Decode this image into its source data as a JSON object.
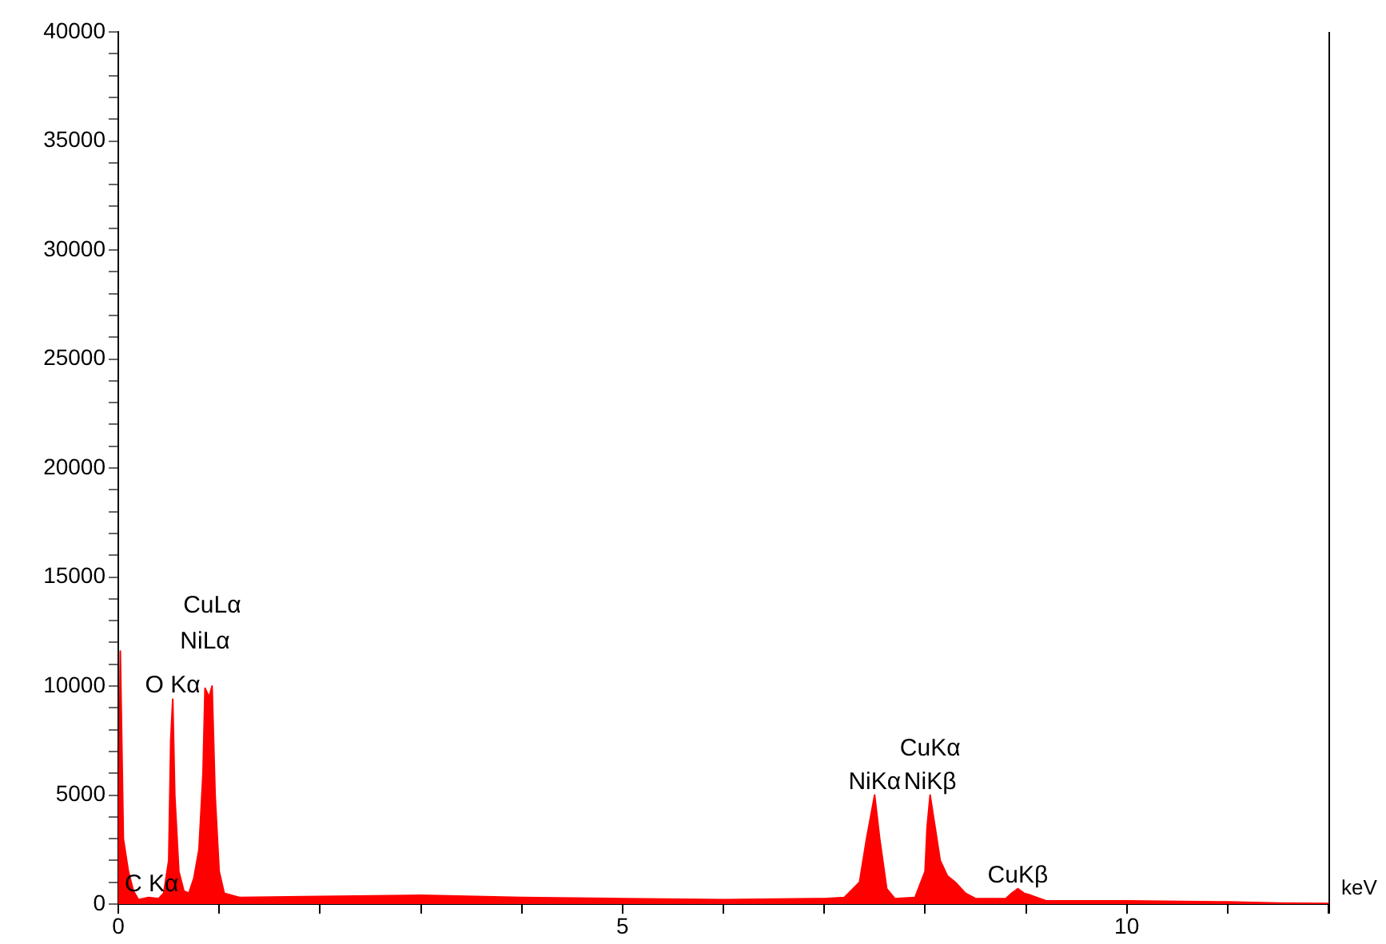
{
  "chart_data": {
    "type": "area",
    "xlabel": "keV",
    "x": [
      0,
      0.02,
      0.05,
      0.1,
      0.15,
      0.2,
      0.3,
      0.4,
      0.45,
      0.5,
      0.52,
      0.54,
      0.56,
      0.6,
      0.65,
      0.7,
      0.75,
      0.8,
      0.84,
      0.86,
      0.9,
      0.93,
      0.96,
      1,
      1.05,
      1.2,
      2,
      3,
      4,
      5,
      6,
      7,
      7.2,
      7.35,
      7.42,
      7.5,
      7.55,
      7.62,
      7.7,
      7.9,
      8,
      8.02,
      8.05,
      8.1,
      8.15,
      8.22,
      8.3,
      8.4,
      8.5,
      8.8,
      8.86,
      8.92,
      8.98,
      9.05,
      9.2,
      10,
      11,
      11.5,
      12
    ],
    "series": [
      {
        "color": "#ff0000",
        "values": [
          0,
          11600,
          3000,
          1500,
          600,
          200,
          300,
          250,
          500,
          2000,
          7500,
          9400,
          5000,
          1500,
          600,
          500,
          1200,
          2500,
          6000,
          9900,
          9500,
          10000,
          5000,
          1500,
          500,
          300,
          350,
          400,
          300,
          250,
          200,
          250,
          300,
          1000,
          3000,
          5000,
          3000,
          700,
          250,
          300,
          1500,
          3500,
          5000,
          3500,
          2000,
          1300,
          1000,
          500,
          250,
          250,
          500,
          700,
          500,
          400,
          150,
          150,
          100,
          50,
          30
        ]
      }
    ],
    "xlim": [
      0,
      12
    ],
    "xticks": [
      0,
      {
        "value": 1,
        "label": null
      },
      {
        "value": 2,
        "label": null
      },
      {
        "value": 3,
        "label": null
      },
      {
        "value": 4,
        "label": null
      },
      5,
      {
        "value": 6,
        "label": null
      },
      {
        "value": 7,
        "label": null
      },
      {
        "value": 8,
        "label": null
      },
      {
        "value": 9,
        "label": null
      },
      10,
      {
        "value": 11,
        "label": null
      },
      {
        "value": 12,
        "label": null
      }
    ],
    "ylim": [
      0,
      40000
    ],
    "yticks": [
      0,
      {
        "value": 1000,
        "label": null
      },
      {
        "value": 2000,
        "label": null
      },
      {
        "value": 3000,
        "label": null
      },
      {
        "value": 4000,
        "label": null
      },
      5000,
      {
        "value": 6000,
        "label": null
      },
      {
        "value": 7000,
        "label": null
      },
      {
        "value": 8000,
        "label": null
      },
      {
        "value": 9000,
        "label": null
      },
      10000,
      {
        "value": 11000,
        "label": null
      },
      {
        "value": 12000,
        "label": null
      },
      {
        "value": 13000,
        "label": null
      },
      {
        "value": 14000,
        "label": null
      },
      15000,
      {
        "value": 16000,
        "label": null
      },
      {
        "value": 17000,
        "label": null
      },
      {
        "value": 18000,
        "label": null
      },
      {
        "value": 19000,
        "label": null
      },
      20000,
      {
        "value": 21000,
        "label": null
      },
      {
        "value": 22000,
        "label": null
      },
      {
        "value": 23000,
        "label": null
      },
      {
        "value": 24000,
        "label": null
      },
      25000,
      {
        "value": 26000,
        "label": null
      },
      {
        "value": 27000,
        "label": null
      },
      {
        "value": 28000,
        "label": null
      },
      {
        "value": 29000,
        "label": null
      },
      30000,
      {
        "value": 31000,
        "label": null
      },
      {
        "value": 32000,
        "label": null
      },
      {
        "value": 33000,
        "label": null
      },
      {
        "value": 34000,
        "label": null
      },
      35000,
      {
        "value": 36000,
        "label": null
      },
      {
        "value": 37000,
        "label": null
      },
      {
        "value": 38000,
        "label": null
      },
      {
        "value": 39000,
        "label": null
      },
      40000
    ],
    "grid": false,
    "legend": false,
    "annotations": [
      {
        "text": "C Kα",
        "x": 0.3,
        "y": 300
      },
      {
        "text": "O Kα",
        "x": 0.54,
        "y": 9400
      },
      {
        "text": "NiLα",
        "x": 0.86,
        "y": 9900
      },
      {
        "text": "CuLα",
        "x": 0.93,
        "y": 10000
      },
      {
        "text": "NiKα",
        "x": 7.5,
        "y": 5000
      },
      {
        "text": "NiKβ",
        "x": 8.05,
        "y": 5000
      },
      {
        "text": "CuKα",
        "x": 8.05,
        "y": 5000
      },
      {
        "text": "CuKβ",
        "x": 8.92,
        "y": 700
      }
    ]
  }
}
